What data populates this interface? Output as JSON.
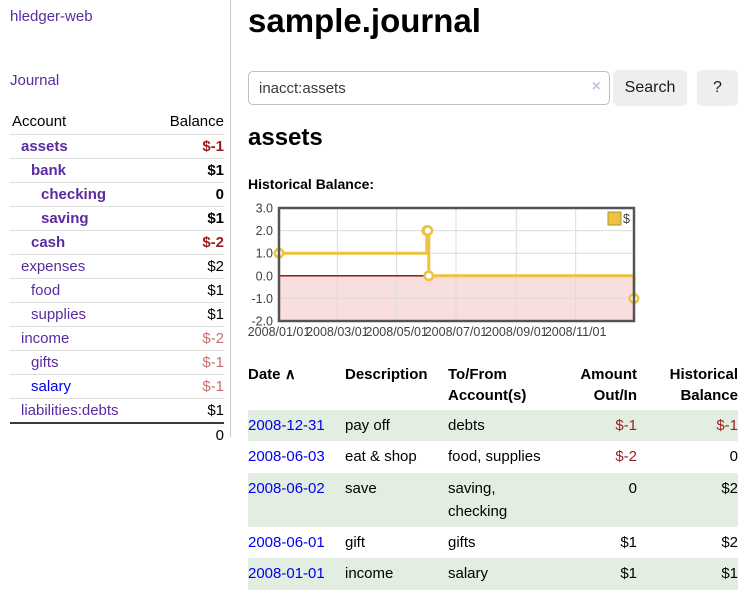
{
  "sidebar": {
    "brand": "hledger-web",
    "journal_link": "Journal",
    "accounts": {
      "headers": {
        "account": "Account",
        "balance": "Balance"
      },
      "rows": [
        {
          "name": "assets",
          "balance": "$-1"
        },
        {
          "name": "bank",
          "balance": "$1"
        },
        {
          "name": "checking",
          "balance": "0"
        },
        {
          "name": "saving",
          "balance": "$1"
        },
        {
          "name": "cash",
          "balance": "$-2"
        },
        {
          "name": "expenses",
          "balance": "$2"
        },
        {
          "name": "food",
          "balance": "$1"
        },
        {
          "name": "supplies",
          "balance": "$1"
        },
        {
          "name": "income",
          "balance": "$-2"
        },
        {
          "name": "gifts",
          "balance": "$-1"
        },
        {
          "name": "salary",
          "balance": "$-1"
        },
        {
          "name": "liabilities:debts",
          "balance": "$1"
        }
      ],
      "total": "0"
    }
  },
  "main": {
    "title": "sample.journal",
    "search": {
      "value": "inacct:assets",
      "clear_icon": "×",
      "search_button": "Search",
      "help_button": "?"
    },
    "account_heading": "assets",
    "chart_label": "Historical Balance:",
    "register": {
      "headers": {
        "date": "Date",
        "sort_indicator": "∧",
        "description": "Description",
        "account": "To/From Account(s)",
        "amount": "Amount Out/In",
        "balance": "Historical Balance"
      },
      "rows": [
        {
          "date": "2008-12-31",
          "description": "pay off",
          "account": "debts",
          "amount": "$-1",
          "balance": "$-1"
        },
        {
          "date": "2008-06-03",
          "description": "eat & shop",
          "account": "food, supplies",
          "amount": "$-2",
          "balance": "0"
        },
        {
          "date": "2008-06-02",
          "description": "save",
          "account": "saving, checking",
          "amount": "0",
          "balance": "$2"
        },
        {
          "date": "2008-06-01",
          "description": "gift",
          "account": "gifts",
          "amount": "$1",
          "balance": "$2"
        },
        {
          "date": "2008-01-01",
          "description": "income",
          "account": "salary",
          "amount": "$1",
          "balance": "$1"
        }
      ]
    }
  },
  "chart_data": {
    "type": "line",
    "title": "Historical Balance of assets",
    "step": true,
    "series": [
      {
        "name": "$",
        "color": "#EDC240",
        "points": [
          {
            "date": "2008-01-01",
            "value": 1
          },
          {
            "date": "2008-06-01",
            "value": 2
          },
          {
            "date": "2008-06-02",
            "value": 2
          },
          {
            "date": "2008-06-03",
            "value": 0
          },
          {
            "date": "2008-12-31",
            "value": -1
          }
        ]
      }
    ],
    "x_range": [
      "2008-01-01",
      "2008-12-31"
    ],
    "ylim": [
      -2,
      3
    ],
    "y_ticks": [
      "3.0",
      "2.0",
      "1.0",
      "0.0",
      "-1.0",
      "-2.0"
    ],
    "x_ticks": [
      {
        "date": "2008-01-01",
        "label": "2008/01/01"
      },
      {
        "date": "2008-03-01",
        "label": "2008/03/01"
      },
      {
        "date": "2008-05-01",
        "label": "2008/05/01"
      },
      {
        "date": "2008-07-01",
        "label": "2008/07/01"
      },
      {
        "date": "2008-09-01",
        "label": "2008/09/01"
      },
      {
        "date": "2008-11-01",
        "label": "2008/11/01"
      }
    ],
    "legend": {
      "label": "$",
      "position": "top-right"
    },
    "grid": true,
    "colors": {
      "line": "#EDC240",
      "negative_region": "#F9DEDE",
      "zero_line": "#8B0000",
      "border": "#545454",
      "gridline": "#DCDCDC",
      "tick_text": "#3F3F3F"
    }
  }
}
